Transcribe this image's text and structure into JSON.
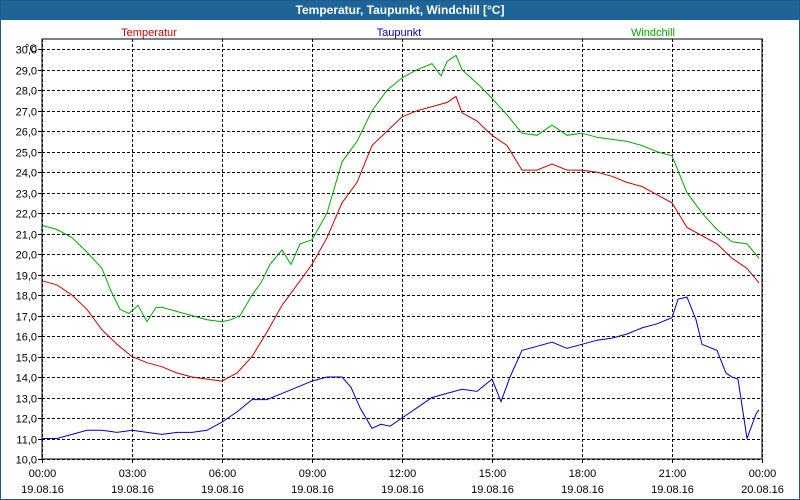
{
  "window": {
    "title": "Temperatur, Taupunkt, Windchill [°C]"
  },
  "colors": {
    "temperatur": "#cc0000",
    "taupunkt": "#0000c0",
    "windchill": "#00aa00",
    "titlebar": "#1e6496"
  },
  "chart_data": {
    "type": "line",
    "title": "Temperatur, Taupunkt, Windchill [°C]",
    "ylabel": "°C",
    "xlabel": "",
    "ylim": [
      10.0,
      30.5
    ],
    "xlim": [
      0,
      24
    ],
    "grid": true,
    "yticks": [
      "10,0",
      "11,0",
      "12,0",
      "13,0",
      "14,0",
      "15,0",
      "16,0",
      "17,0",
      "18,0",
      "19,0",
      "20,0",
      "21,0",
      "22,0",
      "23,0",
      "24,0",
      "25,0",
      "26,0",
      "27,0",
      "28,0",
      "29,0",
      "30,0"
    ],
    "xticks": [
      {
        "time": "00:00",
        "date": "19.08.16"
      },
      {
        "time": "03:00",
        "date": "19.08.16"
      },
      {
        "time": "06:00",
        "date": "19.08.16"
      },
      {
        "time": "09:00",
        "date": "19.08.16"
      },
      {
        "time": "12:00",
        "date": "19.08.16"
      },
      {
        "time": "15:00",
        "date": "19.08.16"
      },
      {
        "time": "18:00",
        "date": "19.08.16"
      },
      {
        "time": "21:00",
        "date": "19.08.16"
      },
      {
        "time": "00:00",
        "date": "20.08.16"
      }
    ],
    "series": [
      {
        "name": "Temperatur",
        "x": [
          0,
          0.5,
          1,
          1.5,
          2,
          2.5,
          3,
          3.5,
          4,
          4.5,
          5,
          5.5,
          6,
          6.5,
          7,
          7.5,
          8,
          8.5,
          9,
          9.5,
          10,
          10.5,
          11,
          11.5,
          12,
          12.5,
          13,
          13.5,
          13.8,
          14,
          14.5,
          15,
          15.5,
          16,
          16.5,
          17,
          17.5,
          18,
          18.5,
          19,
          19.5,
          20,
          20.5,
          21,
          21.5,
          22,
          22.5,
          23,
          23.5,
          23.9
        ],
        "values": [
          18.7,
          18.5,
          18.0,
          17.3,
          16.3,
          15.6,
          15.0,
          14.7,
          14.5,
          14.2,
          14.0,
          13.9,
          13.8,
          14.2,
          15.0,
          16.2,
          17.5,
          18.5,
          19.5,
          20.8,
          22.5,
          23.5,
          25.3,
          26.0,
          26.7,
          27.0,
          27.2,
          27.4,
          27.7,
          26.9,
          26.5,
          25.8,
          25.3,
          24.1,
          24.1,
          24.4,
          24.1,
          24.1,
          24.0,
          23.8,
          23.5,
          23.3,
          22.9,
          22.5,
          21.3,
          20.9,
          20.5,
          19.8,
          19.3,
          18.6
        ]
      },
      {
        "name": "Taupunkt",
        "x": [
          0,
          0.5,
          1,
          1.5,
          2,
          2.5,
          3,
          3.5,
          4,
          4.5,
          5,
          5.5,
          6,
          6.5,
          7,
          7.5,
          8,
          8.5,
          9,
          9.5,
          10,
          10.3,
          10.6,
          11,
          11.3,
          11.6,
          12,
          12.5,
          13,
          13.5,
          14,
          14.5,
          15,
          15.3,
          15.6,
          16,
          16.5,
          17,
          17.5,
          18,
          18.5,
          19,
          19.5,
          20,
          20.5,
          21,
          21.2,
          21.5,
          21.8,
          22,
          22.5,
          22.8,
          23,
          23.2,
          23.5,
          23.8,
          23.9
        ],
        "values": [
          11.0,
          11.0,
          11.2,
          11.4,
          11.4,
          11.3,
          11.4,
          11.3,
          11.2,
          11.3,
          11.3,
          11.4,
          11.8,
          12.3,
          12.9,
          12.9,
          13.2,
          13.5,
          13.8,
          14.0,
          14.0,
          13.5,
          12.5,
          11.5,
          11.7,
          11.6,
          12.0,
          12.5,
          13.0,
          13.2,
          13.4,
          13.3,
          13.9,
          12.8,
          14.0,
          15.3,
          15.5,
          15.7,
          15.4,
          15.6,
          15.8,
          15.9,
          16.1,
          16.4,
          16.6,
          16.9,
          17.8,
          17.9,
          16.8,
          15.6,
          15.3,
          14.2,
          14.0,
          13.9,
          11.0,
          12.2,
          12.4
        ]
      },
      {
        "name": "Windchill",
        "x": [
          0,
          0.5,
          1,
          1.5,
          2,
          2.3,
          2.6,
          2.9,
          3.2,
          3.5,
          3.8,
          4,
          4.5,
          5,
          5.5,
          6,
          6.3,
          6.6,
          7,
          7.3,
          7.6,
          8,
          8.3,
          8.6,
          9,
          9.5,
          10,
          10.5,
          11,
          11.5,
          12,
          12.5,
          13,
          13.3,
          13.5,
          13.8,
          14,
          14.3,
          14.6,
          15,
          15.5,
          16,
          16.5,
          17,
          17.5,
          18,
          18.5,
          19,
          19.5,
          20,
          20.5,
          21,
          21.5,
          22,
          22.5,
          23,
          23.5,
          23.9
        ],
        "values": [
          21.4,
          21.2,
          20.8,
          20.1,
          19.3,
          18.2,
          17.3,
          17.1,
          17.5,
          16.7,
          17.4,
          17.4,
          17.2,
          17.0,
          16.8,
          16.7,
          16.8,
          17.0,
          18.0,
          18.6,
          19.5,
          20.2,
          19.5,
          20.5,
          20.7,
          22.0,
          24.5,
          25.5,
          27.0,
          28.0,
          28.6,
          29.0,
          29.3,
          28.7,
          29.4,
          29.7,
          29.0,
          28.6,
          28.2,
          27.6,
          26.8,
          25.9,
          25.8,
          26.3,
          25.8,
          25.9,
          25.7,
          25.6,
          25.5,
          25.3,
          25.0,
          24.8,
          23.0,
          22.0,
          21.2,
          20.6,
          20.5,
          19.8
        ]
      }
    ]
  }
}
